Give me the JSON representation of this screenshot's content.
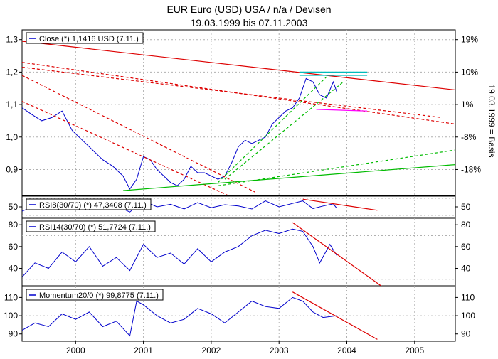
{
  "title": "EUR Euro (USD) USA / n/a / Devisen",
  "subtitle": "19.03.1999 bis 07.11.2003",
  "right_axis_label": "19.03.1999 = Basis",
  "x_axis": {
    "ticks": [
      "2000",
      "2001",
      "2002",
      "2003",
      "2004",
      "2005"
    ]
  },
  "chart_data": [
    {
      "type": "line",
      "name": "price",
      "legend": "Close (*) 1,1416 USD (7.11.)",
      "ylim": [
        0.82,
        1.33
      ],
      "y_ticks": [
        "1,3",
        "1,2",
        "1,1",
        "1,0",
        "0,9"
      ],
      "y_tick_values": [
        1.3,
        1.2,
        1.1,
        1.0,
        0.9
      ],
      "right_ticks": [
        "19%",
        "10%",
        "1%",
        "-8%",
        "-18%"
      ],
      "right_tick_values": [
        1.3,
        1.2,
        1.1,
        1.0,
        0.9
      ],
      "grid": true,
      "series": [
        {
          "color": "#0000cc",
          "x": [
            1999.21,
            1999.35,
            1999.5,
            1999.65,
            1999.8,
            1999.95,
            2000.1,
            2000.25,
            2000.4,
            2000.55,
            2000.7,
            2000.8,
            2000.9,
            2001.0,
            2001.1,
            2001.2,
            2001.3,
            2001.4,
            2001.5,
            2001.6,
            2001.7,
            2001.8,
            2001.9,
            2002.0,
            2002.1,
            2002.2,
            2002.3,
            2002.4,
            2002.5,
            2002.6,
            2002.7,
            2002.8,
            2002.9,
            2003.0,
            2003.1,
            2003.2,
            2003.3,
            2003.4,
            2003.5,
            2003.6,
            2003.7,
            2003.8,
            2003.85
          ],
          "y": [
            1.09,
            1.07,
            1.05,
            1.06,
            1.08,
            1.02,
            0.99,
            0.96,
            0.93,
            0.91,
            0.88,
            0.84,
            0.87,
            0.94,
            0.93,
            0.9,
            0.88,
            0.86,
            0.85,
            0.87,
            0.91,
            0.89,
            0.89,
            0.88,
            0.87,
            0.88,
            0.92,
            0.97,
            0.99,
            0.98,
            0.99,
            1.0,
            1.04,
            1.06,
            1.08,
            1.09,
            1.12,
            1.18,
            1.17,
            1.13,
            1.12,
            1.17,
            1.14
          ]
        },
        {
          "color": "#dd0000",
          "dash": false,
          "x": [
            1999.21,
            2005.6
          ],
          "y": [
            1.295,
            1.145
          ]
        },
        {
          "color": "#dd0000",
          "dash": true,
          "x": [
            1999.21,
            2005.6
          ],
          "y": [
            1.23,
            1.04
          ]
        },
        {
          "color": "#dd0000",
          "dash": true,
          "x": [
            1999.21,
            2005.4
          ],
          "y": [
            1.215,
            1.06
          ]
        },
        {
          "color": "#dd0000",
          "dash": true,
          "x": [
            1999.21,
            2002.65
          ],
          "y": [
            1.19,
            0.83
          ]
        },
        {
          "color": "#dd0000",
          "dash": true,
          "x": [
            1999.21,
            2002.25
          ],
          "y": [
            1.11,
            0.82
          ]
        },
        {
          "color": "#ff00ff",
          "dash": false,
          "x": [
            2003.55,
            2004.3
          ],
          "y": [
            1.085,
            1.08
          ]
        },
        {
          "color": "#00bb00",
          "dash": false,
          "x": [
            2000.7,
            2005.6
          ],
          "y": [
            0.835,
            0.915
          ]
        },
        {
          "color": "#00bb00",
          "dash": true,
          "x": [
            2002.1,
            2005.6
          ],
          "y": [
            0.85,
            0.96
          ]
        },
        {
          "color": "#00bb00",
          "dash": true,
          "x": [
            2002.1,
            2003.7
          ],
          "y": [
            0.86,
            1.185
          ]
        },
        {
          "color": "#00bb00",
          "dash": true,
          "x": [
            2002.2,
            2003.95
          ],
          "y": [
            0.87,
            1.17
          ]
        },
        {
          "color": "#00bbbb",
          "dash": false,
          "x": [
            2003.3,
            2004.3
          ],
          "y": [
            1.19,
            1.19
          ]
        },
        {
          "color": "#00bbbb",
          "dash": false,
          "x": [
            2003.3,
            2004.3
          ],
          "y": [
            1.2,
            1.2
          ]
        }
      ]
    },
    {
      "type": "line",
      "name": "rsi8",
      "legend": "RSI8(30/70) (*) 47,3408 (7.11.)",
      "ylim": [
        25,
        75
      ],
      "y_ticks": [
        "50"
      ],
      "y_tick_values": [
        50
      ],
      "right_ticks": [
        "50"
      ],
      "right_tick_values": [
        50
      ],
      "grid_values": [
        30,
        70
      ],
      "series": [
        {
          "color": "#0000cc",
          "x": [
            1999.21,
            1999.4,
            1999.6,
            1999.8,
            2000.0,
            2000.2,
            2000.4,
            2000.6,
            2000.8,
            2001.0,
            2001.2,
            2001.4,
            2001.6,
            2001.8,
            2002.0,
            2002.2,
            2002.4,
            2002.6,
            2002.8,
            2003.0,
            2003.2,
            2003.35,
            2003.5,
            2003.65,
            2003.8,
            2003.85
          ],
          "y": [
            40,
            52,
            45,
            55,
            47,
            58,
            44,
            52,
            38,
            64,
            50,
            56,
            45,
            60,
            48,
            55,
            52,
            45,
            64,
            50,
            58,
            64,
            46,
            52,
            57,
            47
          ]
        },
        {
          "color": "#dd0000",
          "x": [
            2003.35,
            2004.45
          ],
          "y": [
            68,
            42
          ]
        }
      ]
    },
    {
      "type": "line",
      "name": "rsi14",
      "legend": "RSI14(30/70) (*) 51,7724 (7.11.)",
      "ylim": [
        24,
        86
      ],
      "y_ticks": [
        "80",
        "60",
        "40"
      ],
      "y_tick_values": [
        80,
        60,
        40
      ],
      "right_ticks": [
        "80",
        "60",
        "40"
      ],
      "right_tick_values": [
        80,
        60,
        40
      ],
      "grid_values": [
        30,
        70
      ],
      "series": [
        {
          "color": "#0000cc",
          "x": [
            1999.21,
            1999.4,
            1999.6,
            1999.8,
            2000.0,
            2000.2,
            2000.4,
            2000.6,
            2000.8,
            2001.0,
            2001.2,
            2001.4,
            2001.6,
            2001.8,
            2002.0,
            2002.2,
            2002.4,
            2002.6,
            2002.8,
            2003.0,
            2003.2,
            2003.35,
            2003.5,
            2003.6,
            2003.75,
            2003.85
          ],
          "y": [
            32,
            45,
            40,
            55,
            46,
            60,
            42,
            50,
            38,
            62,
            50,
            54,
            44,
            58,
            46,
            55,
            60,
            70,
            75,
            72,
            76,
            74,
            60,
            45,
            62,
            52
          ]
        },
        {
          "color": "#dd0000",
          "x": [
            2003.2,
            2004.55
          ],
          "y": [
            82,
            22
          ]
        }
      ]
    },
    {
      "type": "line",
      "name": "momentum",
      "legend": "Momentum20/0 (*) 99,8775 (7.11.)",
      "ylim": [
        86,
        116
      ],
      "y_ticks": [
        "110",
        "100",
        "90"
      ],
      "y_tick_values": [
        110,
        100,
        90
      ],
      "right_ticks": [
        "110",
        "100",
        "90"
      ],
      "right_tick_values": [
        110,
        100,
        90
      ],
      "grid_values": [
        100
      ],
      "series": [
        {
          "color": "#0000cc",
          "x": [
            1999.21,
            1999.4,
            1999.6,
            1999.8,
            2000.0,
            2000.2,
            2000.4,
            2000.6,
            2000.8,
            2000.9,
            2001.0,
            2001.2,
            2001.4,
            2001.6,
            2001.8,
            2002.0,
            2002.2,
            2002.4,
            2002.6,
            2002.8,
            2003.0,
            2003.2,
            2003.35,
            2003.5,
            2003.65,
            2003.85
          ],
          "y": [
            92,
            96,
            94,
            101,
            98,
            102,
            94,
            97,
            89,
            108,
            106,
            100,
            96,
            98,
            104,
            101,
            96,
            102,
            108,
            105,
            104,
            110,
            108,
            102,
            99,
            100
          ]
        },
        {
          "color": "#dd0000",
          "x": [
            2003.2,
            2004.45
          ],
          "y": [
            113,
            87
          ]
        }
      ]
    }
  ]
}
